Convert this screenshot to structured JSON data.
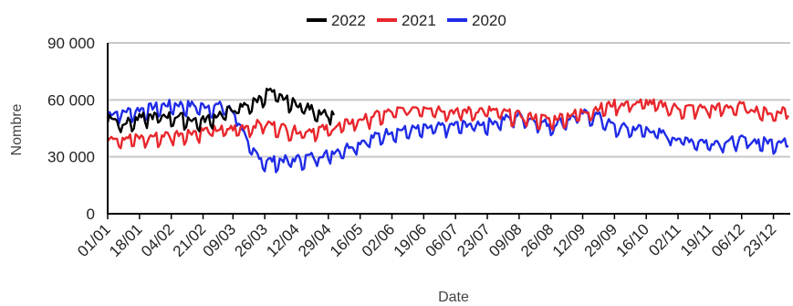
{
  "chart_data": {
    "type": "line",
    "xlabel": "Date",
    "ylabel": "Nombre",
    "ylim": [
      0,
      90000
    ],
    "yticks": [
      0,
      30000,
      60000,
      90000
    ],
    "ytick_labels": [
      "0",
      "30 000",
      "60 000",
      "90 000"
    ],
    "grid": "horizontal",
    "legend_position": "top-center",
    "x_domain_days": [
      0,
      365
    ],
    "xtick_labels": [
      "01/01",
      "18/01",
      "04/02",
      "21/02",
      "09/03",
      "26/03",
      "12/04",
      "29/04",
      "16/05",
      "02/06",
      "19/06",
      "06/07",
      "23/07",
      "09/08",
      "26/08",
      "12/09",
      "29/09",
      "16/10",
      "02/11",
      "19/11",
      "06/12",
      "23/12"
    ],
    "series": [
      {
        "name": "2022",
        "color": "#000000",
        "points": [
          [
            "01/01",
            51000
          ],
          [
            "10/01",
            47000
          ],
          [
            "20/01",
            50000
          ],
          [
            "01/02",
            51000
          ],
          [
            "10/02",
            50000
          ],
          [
            "20/02",
            48000
          ],
          [
            "28/02",
            51000
          ],
          [
            "05/03",
            53000
          ],
          [
            "15/03",
            56000
          ],
          [
            "22/03",
            59000
          ],
          [
            "28/03",
            64000
          ],
          [
            "02/04",
            61000
          ],
          [
            "10/04",
            58000
          ],
          [
            "18/04",
            55000
          ],
          [
            "25/04",
            53000
          ],
          [
            "02/05",
            52000
          ]
        ]
      },
      {
        "name": "2021",
        "color": "#e8272d",
        "points": [
          [
            "01/01",
            40000
          ],
          [
            "18/01",
            39000
          ],
          [
            "04/02",
            41000
          ],
          [
            "21/02",
            43000
          ],
          [
            "09/03",
            44000
          ],
          [
            "26/03",
            47000
          ],
          [
            "12/04",
            43000
          ],
          [
            "29/04",
            44000
          ],
          [
            "16/05",
            49000
          ],
          [
            "02/06",
            53000
          ],
          [
            "19/06",
            56000
          ],
          [
            "06/07",
            53000
          ],
          [
            "23/07",
            54000
          ],
          [
            "09/08",
            51000
          ],
          [
            "26/08",
            49000
          ],
          [
            "12/09",
            53000
          ],
          [
            "29/09",
            57000
          ],
          [
            "16/10",
            58000
          ],
          [
            "02/11",
            55000
          ],
          [
            "19/11",
            55000
          ],
          [
            "06/12",
            56000
          ],
          [
            "23/12",
            52000
          ],
          [
            "31/12",
            55000
          ]
        ]
      },
      {
        "name": "2020",
        "color": "#1f2be6",
        "points": [
          [
            "01/01",
            52000
          ],
          [
            "18/01",
            54000
          ],
          [
            "04/02",
            57000
          ],
          [
            "21/02",
            56000
          ],
          [
            "05/03",
            56000
          ],
          [
            "12/03",
            50000
          ],
          [
            "17/03",
            35000
          ],
          [
            "26/03",
            27000
          ],
          [
            "12/04",
            28000
          ],
          [
            "29/04",
            31000
          ],
          [
            "16/05",
            37000
          ],
          [
            "02/06",
            43000
          ],
          [
            "19/06",
            44000
          ],
          [
            "06/07",
            46000
          ],
          [
            "23/07",
            47000
          ],
          [
            "09/08",
            51000
          ],
          [
            "26/08",
            46000
          ],
          [
            "12/09",
            52000
          ],
          [
            "20/09",
            51000
          ],
          [
            "29/09",
            45000
          ],
          [
            "16/10",
            44000
          ],
          [
            "02/11",
            39000
          ],
          [
            "19/11",
            37000
          ],
          [
            "06/12",
            38000
          ],
          [
            "23/12",
            37000
          ],
          [
            "31/12",
            39000
          ]
        ]
      }
    ]
  }
}
